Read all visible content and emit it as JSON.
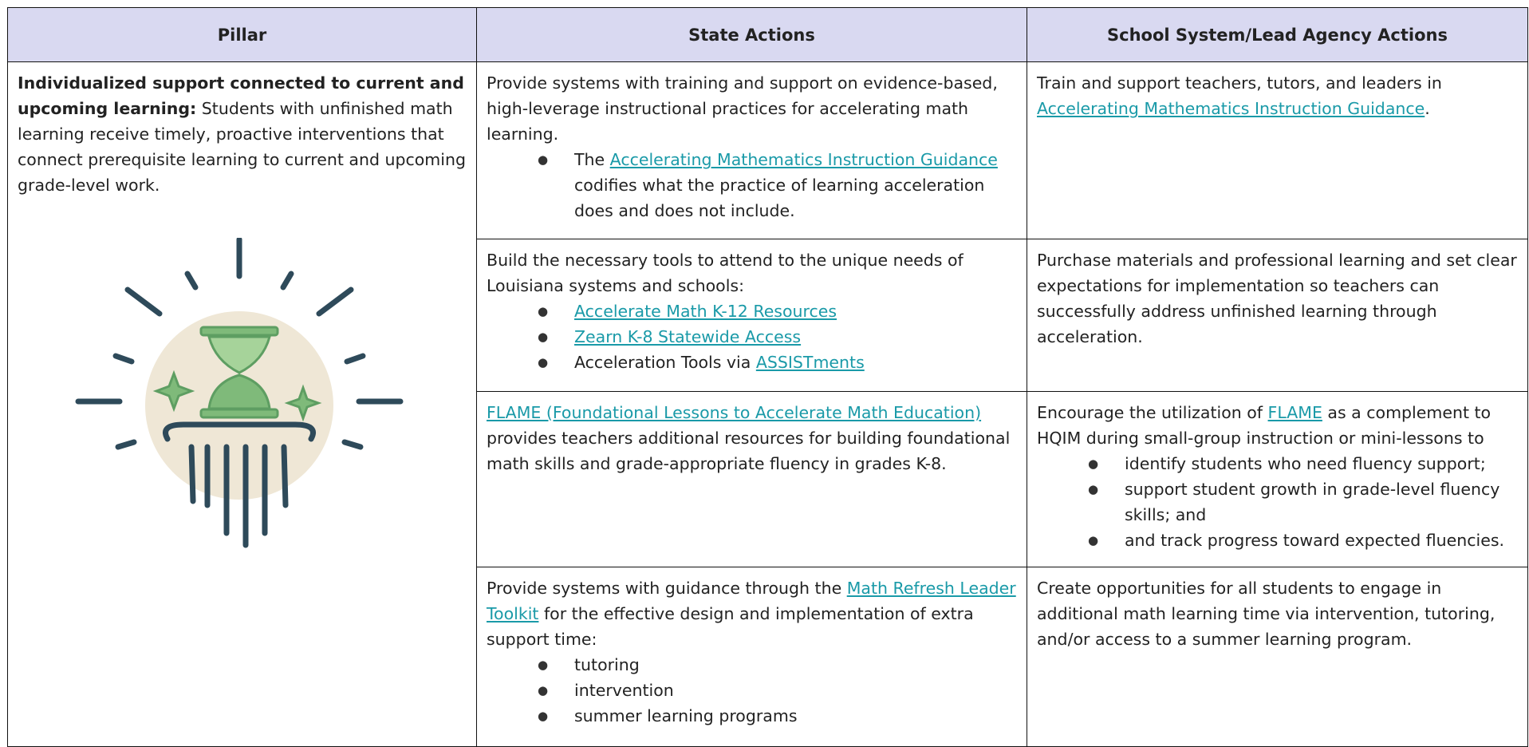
{
  "table": {
    "header": [
      "Pillar",
      "State Actions",
      "School System/Lead Agency Actions"
    ],
    "pillar": {
      "bold": "Individualized support connected to current and upcoming learning:",
      "text": " Students with unfinished math learning receive timely, proactive interventions that connect prerequisite learning to current and upcoming grade-level work."
    },
    "rows": [
      {
        "state": {
          "para": [
            {
              "text": "Provide systems with training and support on evidence-based, high-leverage instructional practices for accelerating math learning."
            }
          ],
          "bullets": [
            [
              {
                "text": "The "
              },
              {
                "text": "Accelerating Mathematics Instruction Guidance",
                "link": true
              },
              {
                "text": " codifies what the practice of learning acceleration does and does not include."
              }
            ]
          ]
        },
        "school": {
          "para": [
            {
              "text": "Train and support teachers, tutors, and leaders in "
            },
            {
              "text": "Accelerating Mathematics Instruction Guidance",
              "link": true
            },
            {
              "text": "."
            }
          ],
          "bullets": []
        }
      },
      {
        "state": {
          "para": [
            {
              "text": "Build the necessary tools to attend to the unique needs of Louisiana systems and schools:"
            }
          ],
          "bullets": [
            [
              {
                "text": "Accelerate Math K-12 Resources",
                "link": true
              }
            ],
            [
              {
                "text": "Zearn K-8 Statewide Access",
                "link": true
              }
            ],
            [
              {
                "text": "Acceleration Tools via "
              },
              {
                "text": "ASSISTments",
                "link": true
              }
            ]
          ]
        },
        "school": {
          "para": [
            {
              "text": "Purchase materials and professional learning and set clear expectations for implementation so teachers can successfully address unfinished learning through acceleration."
            }
          ],
          "bullets": []
        }
      },
      {
        "state": {
          "para": [
            {
              "text": "FLAME (Foundational Lessons to Accelerate Math Education)",
              "link": true
            },
            {
              "text": " provides teachers additional resources for building foundational math skills and grade-appropriate fluency in grades K-8."
            }
          ],
          "bullets": []
        },
        "school": {
          "para": [
            {
              "text": "Encourage the utilization of "
            },
            {
              "text": "FLAME",
              "link": true
            },
            {
              "text": " as a complement to HQIM during small-group instruction or mini-lessons to"
            }
          ],
          "bullets": [
            [
              {
                "text": "identify students who need fluency support;"
              }
            ],
            [
              {
                "text": "support student growth in grade-level fluency skills; and"
              }
            ],
            [
              {
                "text": "and track progress toward expected fluencies."
              }
            ]
          ]
        }
      },
      {
        "state": {
          "para": [
            {
              "text": "Provide systems with guidance through the "
            },
            {
              "text": "Math Refresh Leader Toolkit",
              "link": true
            },
            {
              "text": " for the effective design and implementation of extra support time:"
            }
          ],
          "bullets": [
            [
              {
                "text": "tutoring"
              }
            ],
            [
              {
                "text": "intervention"
              }
            ],
            [
              {
                "text": "summer learning programs"
              }
            ]
          ]
        },
        "school": {
          "para": [
            {
              "text": "Create opportunities for all students to engage in additional math learning time via intervention, tutoring, and/or access to a summer learning program."
            }
          ],
          "bullets": []
        }
      }
    ]
  }
}
